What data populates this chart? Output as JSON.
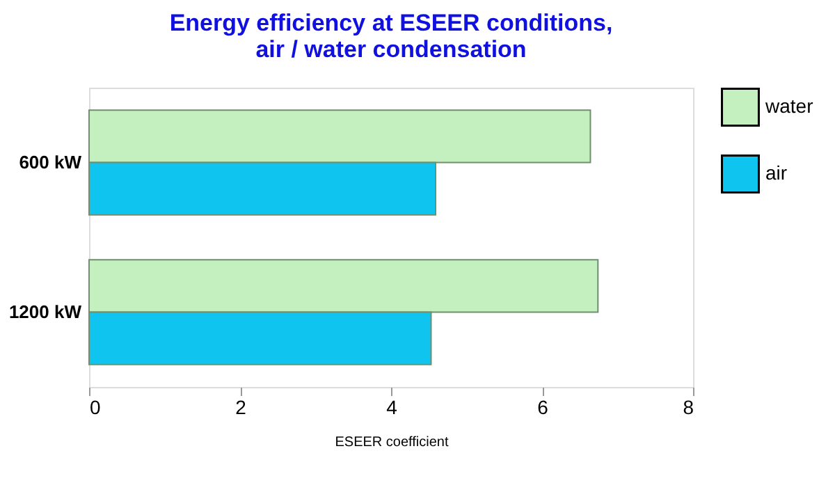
{
  "chart_data": {
    "type": "bar",
    "orientation": "horizontal",
    "title": [
      "Energy efficiency at ESEER conditions,",
      "air / water condensation"
    ],
    "xlabel": "ESEER coefficient",
    "categories": [
      "600 kW",
      "1200 kW"
    ],
    "series": [
      {
        "name": "water",
        "color": "#c4f0c0",
        "values": [
          6.64,
          6.74
        ]
      },
      {
        "name": "air",
        "color": "#10c4f0",
        "values": [
          4.59,
          4.53
        ]
      }
    ],
    "xlim": [
      0,
      8
    ],
    "xticks": [
      0,
      2,
      4,
      6,
      8
    ],
    "grid": false,
    "legend": "top right"
  }
}
